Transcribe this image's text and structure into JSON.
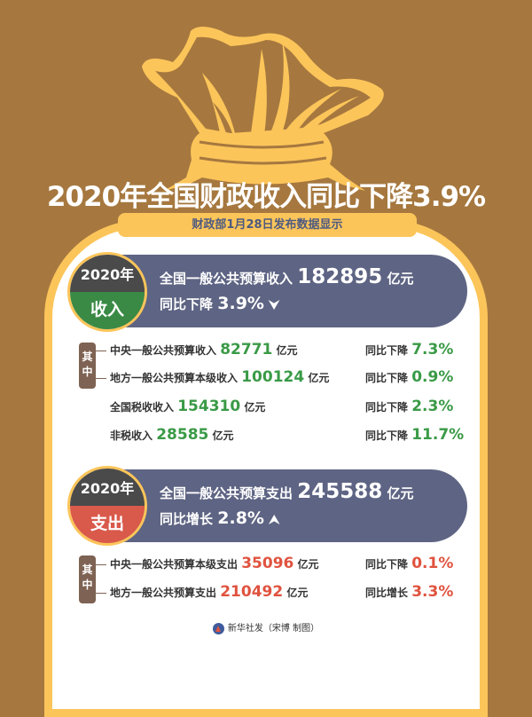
{
  "colors": {
    "background": "#A6783F",
    "accent_yellow": "#FCC55A",
    "banner": "#5E6483",
    "revenue": "#3A8A45",
    "expenditure": "#D9594A",
    "decrease_value": "#3A9A46",
    "increase_value": "#E0533F"
  },
  "title": "2020年全国财政收入同比下降3.9%",
  "subtitle": "财政部1月28日发布数据显示",
  "revenue": {
    "year": "2020年",
    "label": "收入",
    "line1_text": "全国一般公共预算收入",
    "line1_value": "182895",
    "line1_unit": "亿元",
    "line2_text": "同比下降",
    "line2_value": "3.9%",
    "trend_icon": "down-arrow-icon",
    "tag": [
      "其",
      "中"
    ],
    "items": [
      {
        "label": "中央一般公共预算收入",
        "value": "82771",
        "unit": "亿元",
        "change_text": "同比下降",
        "change": "7.3%"
      },
      {
        "label": "地方一般公共预算本级收入",
        "value": "100124",
        "unit": "亿元",
        "change_text": "同比下降",
        "change": "0.9%"
      },
      {
        "label": "全国税收收入",
        "value": "154310",
        "unit": "亿元",
        "change_text": "同比下降",
        "change": "2.3%"
      },
      {
        "label": "非税收入",
        "value": "28585",
        "unit": "亿元",
        "change_text": "同比下降",
        "change": "11.7%"
      }
    ]
  },
  "expenditure": {
    "year": "2020年",
    "label": "支出",
    "line1_text": "全国一般公共预算支出",
    "line1_value": "245588",
    "line1_unit": "亿元",
    "line2_text": "同比增长",
    "line2_value": "2.8%",
    "trend_icon": "up-arrow-icon",
    "tag": [
      "其",
      "中"
    ],
    "items": [
      {
        "label": "中央一般公共预算本级支出",
        "value": "35096",
        "unit": "亿元",
        "change_text": "同比下降",
        "change": "0.1%"
      },
      {
        "label": "地方一般公共预算支出",
        "value": "210492",
        "unit": "亿元",
        "change_text": "同比增长",
        "change": "3.3%"
      }
    ]
  },
  "footer": "新华社发（宋博 制图）"
}
